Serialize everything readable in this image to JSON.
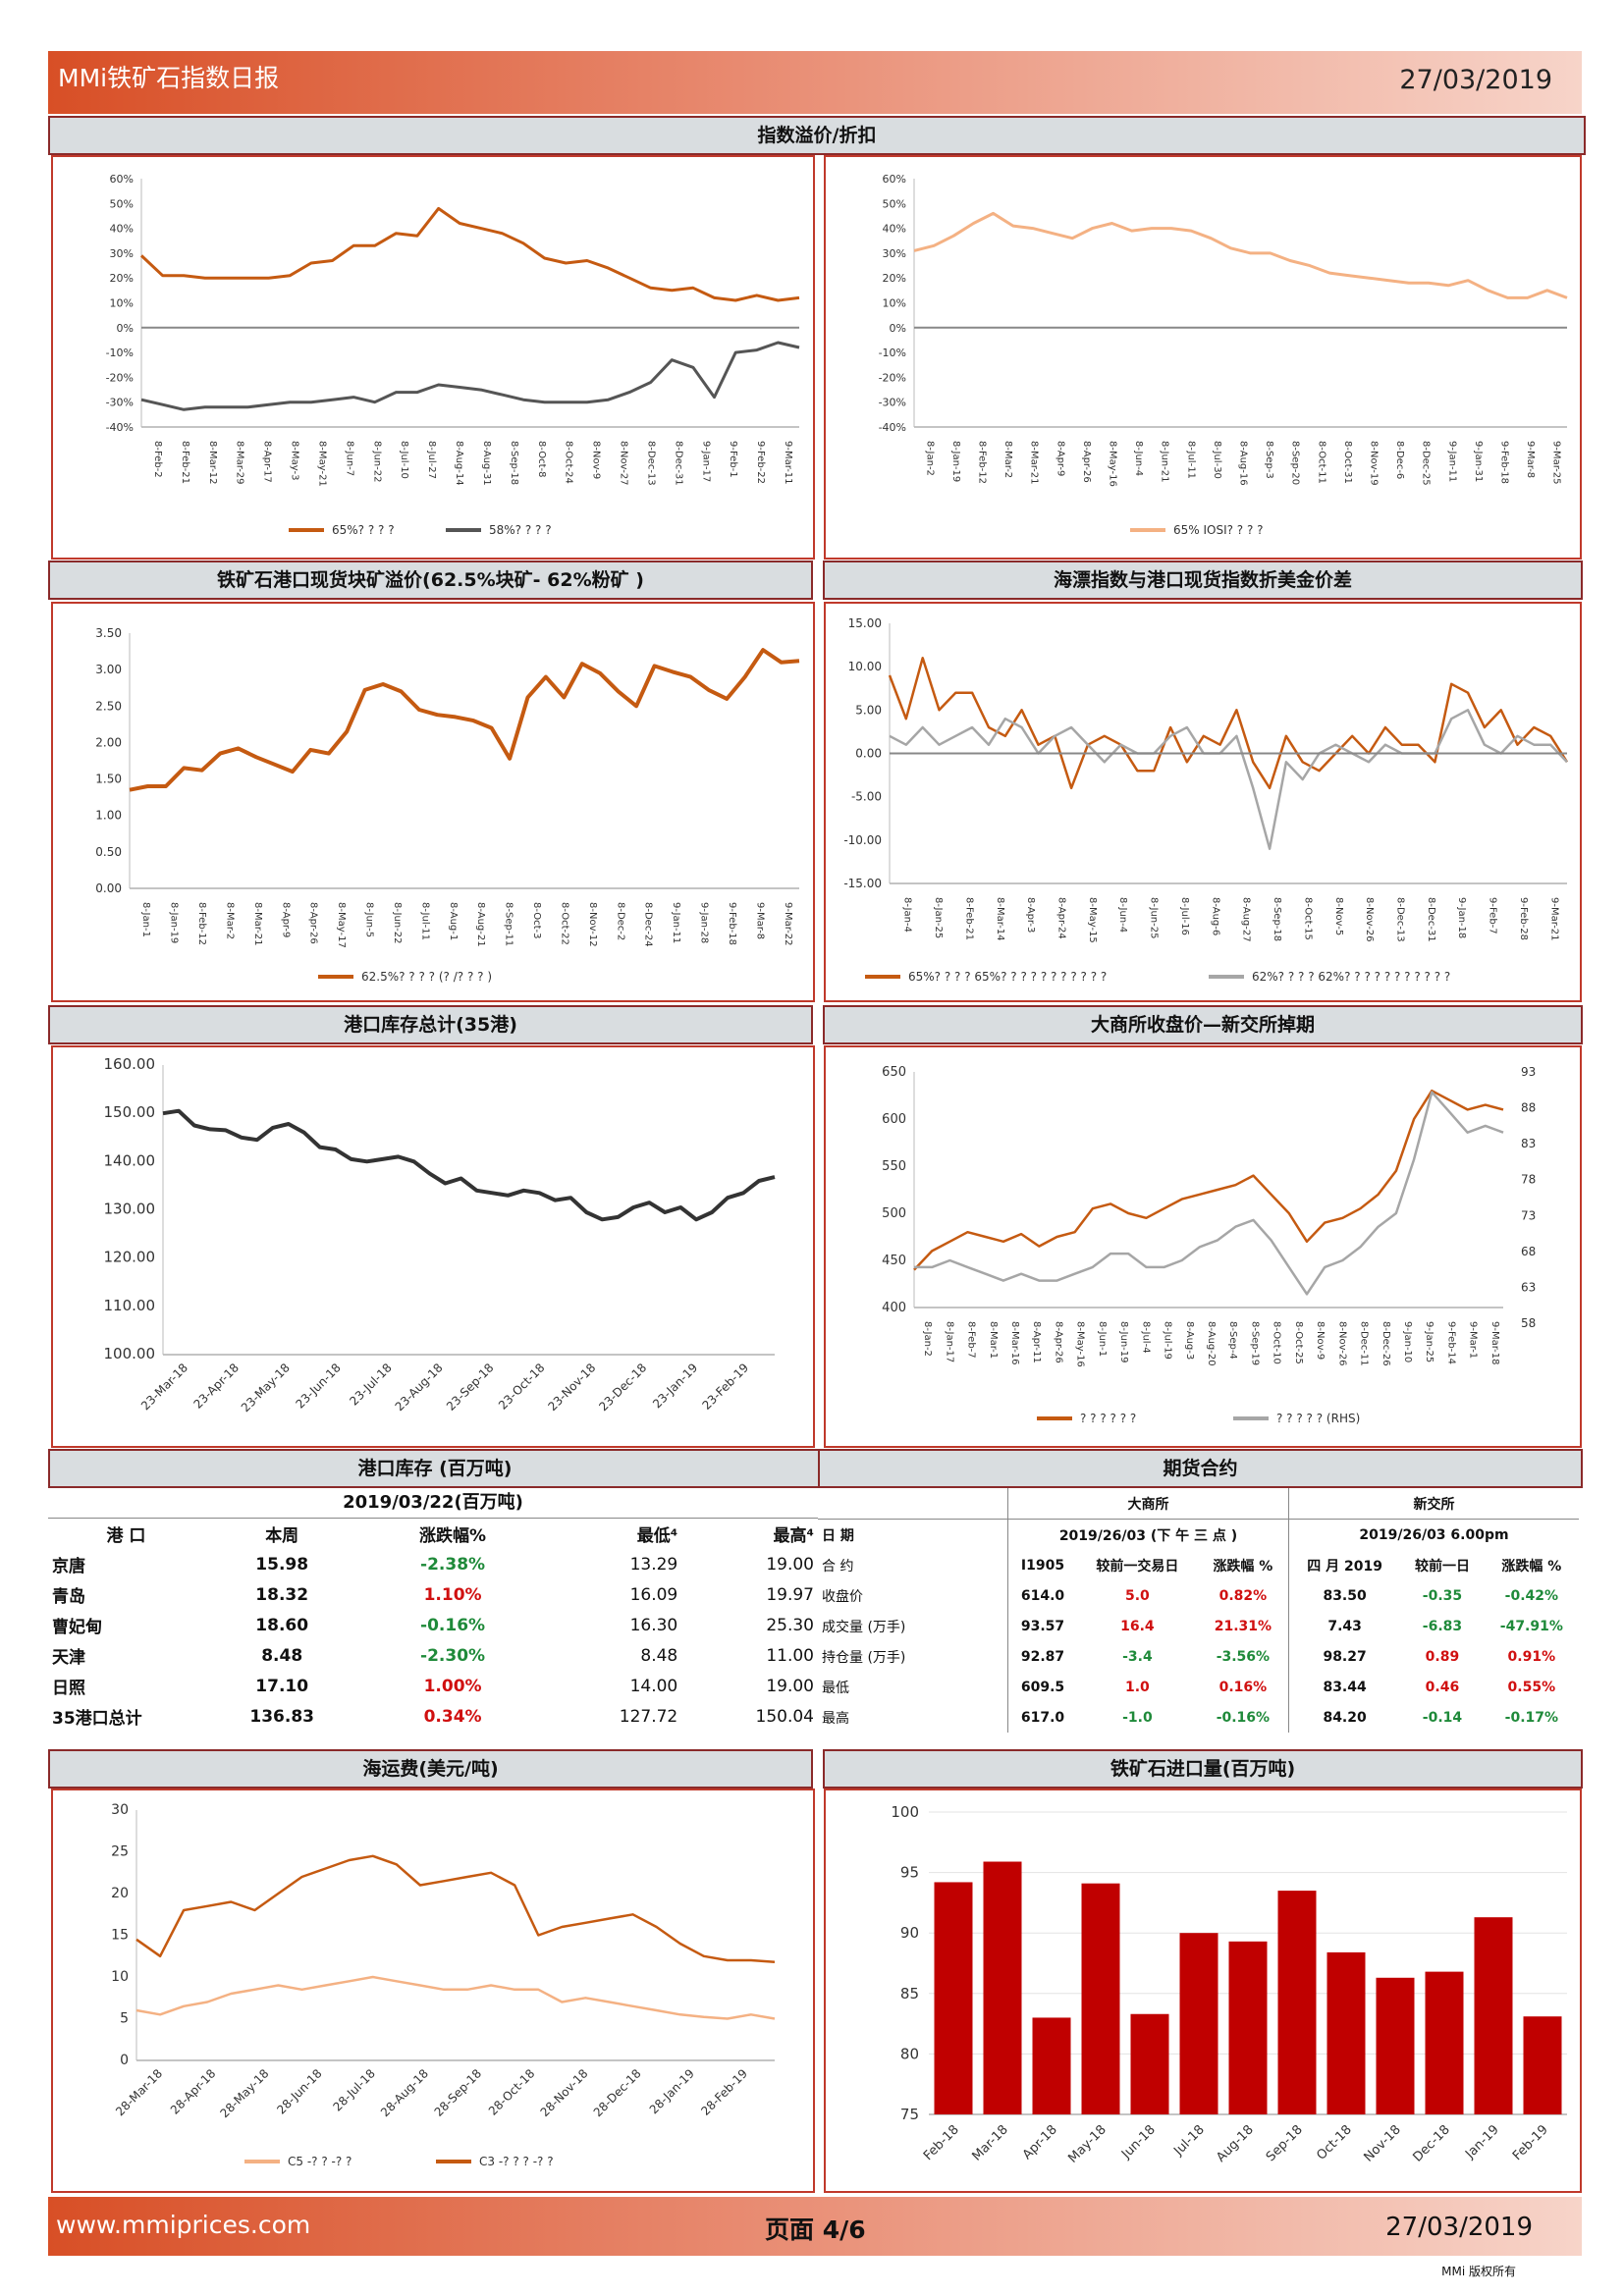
{
  "header": {
    "title": "MMi铁矿石指数日报",
    "date": "27/03/2019"
  },
  "sections": {
    "premium": "指数溢价/折扣",
    "lump": "铁矿石港口现货块矿溢价(62.5%块矿- 62%粉矿 )",
    "seaborne": "海漂指数与港口现货指数折美金价差",
    "inventory_chart": "港口库存总计(35港)",
    "dce": "大商所收盘价—新交所掉期",
    "inventory_table": "港口库存 (百万吨)",
    "futures": "期货合约",
    "freight": "海运费(美元/吨)",
    "imports": "铁矿石进口量(百万吨)"
  },
  "inventory": {
    "subtitle": "2019/03/22(百万吨)",
    "headers": [
      "港 口",
      "本周",
      "涨跌幅%",
      "最低⁴",
      "最高⁴"
    ],
    "rows": [
      {
        "port": "京唐",
        "week": "15.98",
        "chg": "-2.38%",
        "low": "13.29",
        "high": "19.00",
        "sign": "neg"
      },
      {
        "port": "青岛",
        "week": "18.32",
        "chg": "1.10%",
        "low": "16.09",
        "high": "19.97",
        "sign": "pos"
      },
      {
        "port": "曹妃甸",
        "week": "18.60",
        "chg": "-0.16%",
        "low": "16.30",
        "high": "25.30",
        "sign": "neg"
      },
      {
        "port": "天津",
        "week": "8.48",
        "chg": "-2.30%",
        "low": "8.48",
        "high": "11.00",
        "sign": "neg"
      },
      {
        "port": "日照",
        "week": "17.10",
        "chg": "1.00%",
        "low": "14.00",
        "high": "19.00",
        "sign": "pos"
      },
      {
        "port": "35港口总计",
        "week": "136.83",
        "chg": "0.34%",
        "low": "127.72",
        "high": "150.04",
        "sign": "pos"
      }
    ]
  },
  "futures": {
    "dce": "大商所",
    "sgx": "新交所",
    "date_label": "日 期",
    "dce_date": "2019/26/03 (下 午 三 点 )",
    "sgx_date": "2019/26/03 6.00pm",
    "rows": [
      {
        "label": "合 约",
        "d1": "I1905",
        "d2": "较前一交易日",
        "d3": "涨跌幅 %",
        "s1": "四 月 2019",
        "s2": "较前一日",
        "s3": "涨跌幅 %",
        "hdr": true
      },
      {
        "label": "收盘价",
        "d1": "614.0",
        "d2": "5.0",
        "d3": "0.82%",
        "s1": "83.50",
        "s2": "-0.35",
        "s3": "-0.42%",
        "dc": "pos",
        "sc": "neg"
      },
      {
        "label": "成交量 (万手)",
        "d1": "93.57",
        "d2": "16.4",
        "d3": "21.31%",
        "s1": "7.43",
        "s2": "-6.83",
        "s3": "-47.91%",
        "dc": "pos",
        "sc": "neg"
      },
      {
        "label": "持仓量 (万手)",
        "d1": "92.87",
        "d2": "-3.4",
        "d3": "-3.56%",
        "s1": "98.27",
        "s2": "0.89",
        "s3": "0.91%",
        "dc": "neg",
        "sc": "pos"
      },
      {
        "label": "最低",
        "d1": "609.5",
        "d2": "1.0",
        "d3": "0.16%",
        "s1": "83.44",
        "s2": "0.46",
        "s3": "0.55%",
        "dc": "pos",
        "sc": "pos"
      },
      {
        "label": "最高",
        "d1": "617.0",
        "d2": "-1.0",
        "d3": "-0.16%",
        "s1": "84.20",
        "s2": "-0.14",
        "s3": "-0.17%",
        "dc": "neg",
        "sc": "neg"
      }
    ]
  },
  "chart_data": [
    {
      "type": "line",
      "id": "premium_left",
      "yticks": [
        "60%",
        "50%",
        "40%",
        "30%",
        "20%",
        "10%",
        "0%",
        "-10%",
        "-20%",
        "-30%",
        "-40%"
      ],
      "ylim": [
        -40,
        60
      ],
      "xticks": [
        "8-Feb-2",
        "8-Feb-21",
        "8-Mar-12",
        "8-Mar-29",
        "8-Apr-17",
        "8-May-3",
        "8-May-21",
        "8-Jun-7",
        "8-Jun-22",
        "8-Jul-10",
        "8-Jul-27",
        "8-Aug-14",
        "8-Aug-31",
        "8-Sep-18",
        "8-Oct-8",
        "8-Oct-24",
        "8-Nov-9",
        "8-Nov-27",
        "8-Dec-13",
        "8-Dec-31",
        "9-Jan-17",
        "9-Feb-1",
        "9-Feb-22",
        "9-Mar-11"
      ],
      "series": [
        {
          "name": "65%? ? ? ?",
          "color": "#c55a11",
          "values": [
            29,
            21,
            21,
            20,
            20,
            20,
            20,
            21,
            26,
            27,
            33,
            33,
            38,
            37,
            48,
            42,
            40,
            38,
            34,
            28,
            26,
            27,
            24,
            20,
            16,
            15,
            16,
            12,
            11,
            13,
            11,
            12
          ]
        },
        {
          "name": "58%? ? ? ?",
          "color": "#555555",
          "values": [
            -29,
            -31,
            -33,
            -32,
            -32,
            -32,
            -31,
            -30,
            -30,
            -29,
            -28,
            -30,
            -26,
            -26,
            -23,
            -24,
            -25,
            -27,
            -29,
            -30,
            -30,
            -30,
            -29,
            -26,
            -22,
            -13,
            -16,
            -28,
            -10,
            -9,
            -6,
            -8
          ]
        }
      ]
    },
    {
      "type": "line",
      "id": "premium_right",
      "yticks": [
        "60%",
        "50%",
        "40%",
        "30%",
        "20%",
        "10%",
        "0%",
        "-10%",
        "-20%",
        "-30%",
        "-40%"
      ],
      "ylim": [
        -40,
        60
      ],
      "xticks": [
        "8-Jan-2",
        "8-Jan-19",
        "8-Feb-12",
        "8-Mar-2",
        "8-Mar-21",
        "8-Apr-9",
        "8-Apr-26",
        "8-May-16",
        "8-Jun-4",
        "8-Jun-21",
        "8-Jul-11",
        "8-Jul-30",
        "8-Aug-16",
        "8-Sep-3",
        "8-Sep-20",
        "8-Oct-11",
        "8-Oct-31",
        "8-Nov-19",
        "8-Dec-6",
        "8-Dec-25",
        "9-Jan-11",
        "9-Jan-31",
        "9-Feb-18",
        "9-Mar-8",
        "9-Mar-25"
      ],
      "series": [
        {
          "name": "65% IOSI? ? ? ?",
          "color": "#f4b183",
          "values": [
            31,
            33,
            37,
            42,
            46,
            41,
            40,
            38,
            36,
            40,
            42,
            39,
            40,
            40,
            39,
            36,
            32,
            30,
            30,
            27,
            25,
            22,
            21,
            20,
            19,
            18,
            18,
            17,
            19,
            15,
            12,
            12,
            15,
            12
          ]
        }
      ]
    },
    {
      "type": "line",
      "id": "lump",
      "yticks": [
        "3.50",
        "3.00",
        "2.50",
        "2.00",
        "1.50",
        "1.00",
        "0.50",
        "0.00"
      ],
      "ylim": [
        0,
        3.5
      ],
      "xticks": [
        "8-Jan-1",
        "8-Jan-19",
        "8-Feb-12",
        "8-Mar-2",
        "8-Mar-21",
        "8-Apr-9",
        "8-Apr-26",
        "8-May-17",
        "8-Jun-5",
        "8-Jun-22",
        "8-Jul-11",
        "8-Aug-1",
        "8-Aug-21",
        "8-Sep-11",
        "8-Oct-3",
        "8-Oct-22",
        "8-Nov-12",
        "8-Dec-2",
        "8-Dec-24",
        "9-Jan-11",
        "9-Jan-28",
        "9-Feb-18",
        "9-Mar-8",
        "9-Mar-22"
      ],
      "series": [
        {
          "name": "62.5%? ? ? ? (? /? ? ? )",
          "color": "#c55a11",
          "values": [
            1.35,
            1.4,
            1.4,
            1.65,
            1.62,
            1.85,
            1.92,
            1.8,
            1.7,
            1.6,
            1.9,
            1.85,
            2.15,
            2.72,
            2.8,
            2.7,
            2.45,
            2.38,
            2.35,
            2.3,
            2.2,
            1.78,
            2.62,
            2.9,
            2.62,
            3.08,
            2.95,
            2.7,
            2.5,
            3.05,
            2.97,
            2.9,
            2.72,
            2.6,
            2.9,
            3.27,
            3.1,
            3.12
          ]
        }
      ]
    },
    {
      "type": "line",
      "id": "seaborne",
      "yticks": [
        "15.00",
        "10.00",
        "5.00",
        "0.00",
        "-5.00",
        "-10.00",
        "-15.00"
      ],
      "ylim": [
        -15,
        15
      ],
      "xticks": [
        "8-Jan-4",
        "8-Jan-25",
        "8-Feb-21",
        "8-Mar-14",
        "8-Apr-3",
        "8-Apr-24",
        "8-May-15",
        "8-Jun-4",
        "8-Jun-25",
        "8-Jul-16",
        "8-Aug-6",
        "8-Aug-27",
        "8-Sep-18",
        "8-Oct-15",
        "8-Nov-5",
        "8-Nov-26",
        "8-Dec-13",
        "8-Dec-31",
        "9-Jan-18",
        "9-Feb-7",
        "9-Feb-28",
        "9-Mar-21"
      ],
      "series": [
        {
          "name": "65%? ? ? ? 65%? ? ? ? ? ? ? ? ? ? ?",
          "color": "#c55a11",
          "values": [
            9,
            4,
            11,
            5,
            7,
            7,
            3,
            2,
            5,
            1,
            2,
            -4,
            1,
            2,
            1,
            -2,
            -2,
            3,
            -1,
            2,
            1,
            5,
            -1,
            -4,
            2,
            -1,
            -2,
            0,
            2,
            0,
            3,
            1,
            1,
            -1,
            8,
            7,
            3,
            5,
            1,
            3,
            2,
            -1
          ]
        },
        {
          "name": "62%? ? ? ? 62%? ? ? ? ? ? ? ? ? ? ?",
          "color": "#a6a6a6",
          "values": [
            2,
            1,
            3,
            1,
            2,
            3,
            1,
            4,
            3,
            0,
            2,
            3,
            1,
            -1,
            1,
            0,
            0,
            2,
            3,
            0,
            0,
            2,
            -4,
            -11,
            -1,
            -3,
            0,
            1,
            0,
            -1,
            1,
            0,
            0,
            0,
            4,
            5,
            1,
            0,
            2,
            1,
            1,
            -1
          ]
        }
      ]
    },
    {
      "type": "line",
      "id": "inventory",
      "yticks": [
        "160.00",
        "150.00",
        "140.00",
        "130.00",
        "120.00",
        "110.00",
        "100.00"
      ],
      "ylim": [
        100,
        160
      ],
      "xticks": [
        "23-Mar-18",
        "23-Apr-18",
        "23-May-18",
        "23-Jun-18",
        "23-Jul-18",
        "23-Aug-18",
        "23-Sep-18",
        "23-Oct-18",
        "23-Nov-18",
        "23-Dec-18",
        "23-Jan-19",
        "23-Feb-19"
      ],
      "series": [
        {
          "name": "港口库存",
          "color": "#333333",
          "values": [
            150,
            150.5,
            147.5,
            146.7,
            146.5,
            145,
            144.5,
            147,
            147.8,
            146,
            143,
            142.5,
            140.5,
            140,
            140.5,
            141,
            140,
            137.5,
            135.5,
            136.5,
            134,
            133.5,
            133,
            134,
            133.5,
            132,
            132.5,
            129.5,
            128,
            128.5,
            130.5,
            131.5,
            129.5,
            130.5,
            128,
            129.5,
            132.5,
            133.5,
            136,
            136.8
          ]
        }
      ]
    },
    {
      "type": "line",
      "id": "dce",
      "yticks": [
        "650",
        "600",
        "550",
        "500",
        "450",
        "400"
      ],
      "ylim": [
        400,
        650
      ],
      "y2ticks": [
        "93",
        "88",
        "83",
        "78",
        "73",
        "68",
        "63",
        "58"
      ],
      "y2lim": [
        58,
        93
      ],
      "xticks": [
        "8-Jan-2",
        "8-Jan-17",
        "8-Feb-7",
        "8-Mar-1",
        "8-Mar-16",
        "8-Apr-11",
        "8-Apr-26",
        "8-May-16",
        "8-Jun-1",
        "8-Jun-19",
        "8-Jul-4",
        "8-Jul-19",
        "8-Aug-3",
        "8-Aug-20",
        "8-Sep-4",
        "8-Sep-19",
        "8-Oct-10",
        "8-Oct-25",
        "8-Nov-9",
        "8-Nov-26",
        "8-Dec-11",
        "8-Dec-26",
        "9-Jan-10",
        "9-Jan-25",
        "9-Feb-14",
        "9-Mar-1",
        "9-Mar-18"
      ],
      "series": [
        {
          "name": "? ? ? ? ? ?",
          "color": "#c55a11",
          "values": [
            440,
            460,
            470,
            480,
            475,
            470,
            478,
            465,
            475,
            480,
            505,
            510,
            500,
            495,
            505,
            515,
            520,
            525,
            530,
            540,
            520,
            500,
            470,
            490,
            495,
            505,
            520,
            545,
            600,
            630,
            620,
            610,
            615,
            610
          ]
        },
        {
          "name": "? ? ? ? ? (RHS)",
          "color": "#a6a6a6",
          "values": [
            64,
            64,
            65,
            64,
            63,
            62,
            63,
            62,
            62,
            63,
            64,
            66,
            66,
            64,
            64,
            65,
            67,
            68,
            70,
            71,
            68,
            64,
            60,
            64,
            65,
            67,
            70,
            72,
            80,
            90,
            87,
            84,
            85,
            84
          ]
        }
      ]
    },
    {
      "type": "line",
      "id": "freight",
      "yticks": [
        "30",
        "25",
        "20",
        "15",
        "10",
        "5",
        "0"
      ],
      "ylim": [
        0,
        30
      ],
      "xticks": [
        "28-Mar-18",
        "28-Apr-18",
        "28-May-18",
        "28-Jun-18",
        "28-Jul-18",
        "28-Aug-18",
        "28-Sep-18",
        "28-Oct-18",
        "28-Nov-18",
        "28-Dec-18",
        "28-Jan-19",
        "28-Feb-19"
      ],
      "series": [
        {
          "name": "C5 -? ? -? ?",
          "color": "#f4b183",
          "values": [
            6,
            5.5,
            6.5,
            7,
            8,
            8.5,
            9,
            8.5,
            9,
            9.5,
            10,
            9.5,
            9,
            8.5,
            8.5,
            9,
            8.5,
            8.5,
            7,
            7.5,
            7,
            6.5,
            6,
            5.5,
            5.2,
            5,
            5.5,
            5
          ]
        },
        {
          "name": "C3 -? ? ? -? ?",
          "color": "#c55a11",
          "values": [
            14.5,
            12.5,
            18,
            18.5,
            19,
            18,
            20,
            22,
            23,
            24,
            24.5,
            23.5,
            21,
            21.5,
            22,
            22.5,
            21,
            15,
            16,
            16.5,
            17,
            17.5,
            16,
            14,
            12.5,
            12,
            12,
            11.8
          ]
        }
      ]
    },
    {
      "type": "bar",
      "id": "imports",
      "yticks": [
        "100",
        "95",
        "90",
        "85",
        "80",
        "75"
      ],
      "ylim": [
        75,
        100
      ],
      "categories": [
        "Feb-18",
        "Mar-18",
        "Apr-18",
        "May-18",
        "Jun-18",
        "Jul-18",
        "Aug-18",
        "Sep-18",
        "Oct-18",
        "Nov-18",
        "Dec-18",
        "Jan-19",
        "Feb-19"
      ],
      "values": [
        94.2,
        95.9,
        83,
        94.1,
        83.3,
        90,
        89.3,
        93.5,
        88.4,
        86.3,
        86.8,
        91.3,
        83.1
      ],
      "color": "#c00000"
    }
  ],
  "footer": {
    "url": "www.mmiprices.com",
    "page": "页面 4/6",
    "date": "27/03/2019",
    "copyright": "MMi 版权所有"
  }
}
